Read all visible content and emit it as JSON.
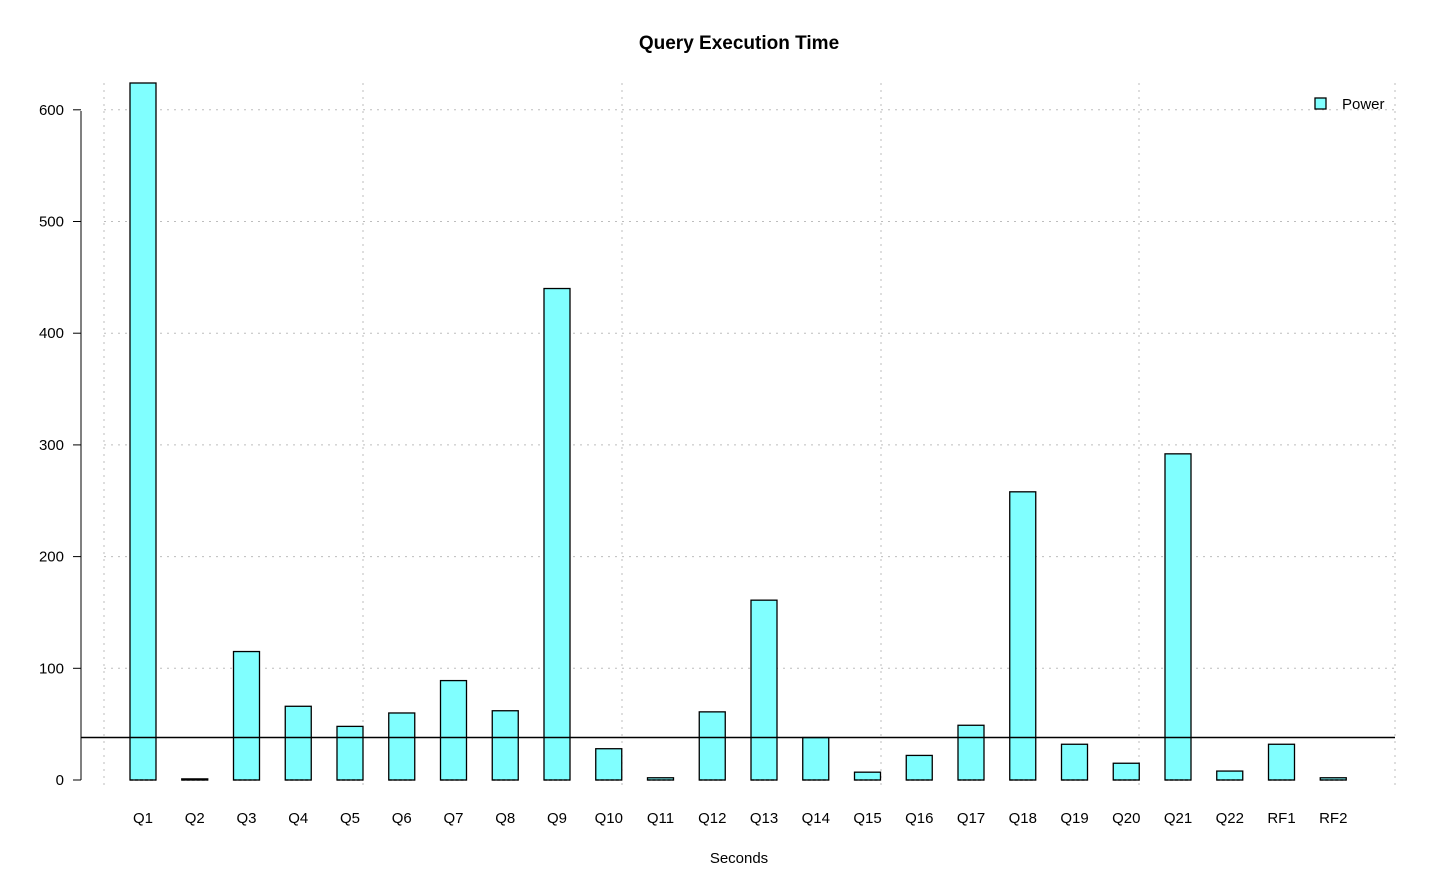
{
  "chart_data": {
    "type": "bar",
    "title": "Query Execution Time",
    "xlabel": "Seconds",
    "ylabel": "",
    "categories": [
      "Q1",
      "Q2",
      "Q3",
      "Q4",
      "Q5",
      "Q6",
      "Q7",
      "Q8",
      "Q9",
      "Q10",
      "Q11",
      "Q12",
      "Q13",
      "Q14",
      "Q15",
      "Q16",
      "Q17",
      "Q18",
      "Q19",
      "Q20",
      "Q21",
      "Q22",
      "RF1",
      "RF2"
    ],
    "series": [
      {
        "name": "Power",
        "color": "#80ffff",
        "values": [
          624,
          1,
          115,
          66,
          48,
          60,
          89,
          62,
          440,
          28,
          2,
          61,
          161,
          38,
          7,
          22,
          49,
          258,
          32,
          15,
          292,
          8,
          32,
          2
        ]
      }
    ],
    "ylim": [
      0,
      624
    ],
    "yticks": [
      0,
      100,
      200,
      300,
      400,
      500,
      600
    ],
    "reference_line": 38,
    "grid": true,
    "legend_position": "top-right"
  }
}
